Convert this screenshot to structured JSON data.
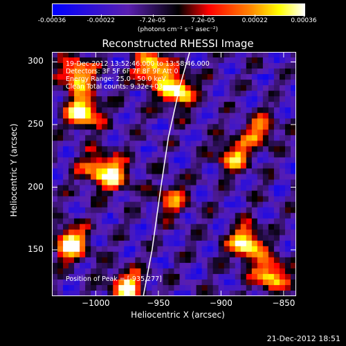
{
  "colorbar": {
    "tick_labels": [
      "-0.00036",
      "-0.00022",
      "-7.2e-05",
      "7.2e-05",
      "0.00022",
      "0.00036"
    ],
    "tick_values": [
      -0.00036,
      -0.00022,
      -7.2e-05,
      7.2e-05,
      0.00022,
      0.00036
    ],
    "unit": "(photons cm⁻² s⁻¹ asec⁻²)"
  },
  "chart_data": {
    "type": "heatmap",
    "title": "Reconstructed RHESSI Image",
    "xlabel": "Heliocentric X (arcsec)",
    "ylabel": "Heliocentric Y (arcsec)",
    "xlim": [
      -1035,
      -840
    ],
    "ylim": [
      113,
      308
    ],
    "xticks": [
      -1000,
      -950,
      -900,
      -850
    ],
    "yticks": [
      150,
      200,
      250,
      300
    ],
    "xtick_labels": [
      "−1000",
      "−950",
      "−900",
      "−850"
    ],
    "ytick_labels": [
      "150",
      "200",
      "250",
      "300"
    ],
    "zlim": [
      -0.00036,
      0.00036
    ],
    "colormap": [
      "#0000ff",
      "#5a1fb0",
      "#000000",
      "#ff0000",
      "#ff8000",
      "#ffff00",
      "#ffffff"
    ],
    "bright_sources": [
      {
        "x": -1010,
        "y": 260,
        "intensity": 1.0
      },
      {
        "x": -1015,
        "y": 290,
        "intensity": 0.9
      },
      {
        "x": -1020,
        "y": 155,
        "intensity": 1.0
      },
      {
        "x": -975,
        "y": 120,
        "intensity": 0.9
      },
      {
        "x": -955,
        "y": 295,
        "intensity": 0.95
      },
      {
        "x": -935,
        "y": 277,
        "intensity": 1.0
      },
      {
        "x": -985,
        "y": 210,
        "intensity": 0.7
      },
      {
        "x": -1000,
        "y": 215,
        "intensity": 0.6
      },
      {
        "x": -880,
        "y": 155,
        "intensity": 1.0
      },
      {
        "x": -860,
        "y": 130,
        "intensity": 0.85
      },
      {
        "x": -890,
        "y": 225,
        "intensity": 0.7
      },
      {
        "x": -870,
        "y": 245,
        "intensity": 0.6
      },
      {
        "x": -940,
        "y": 190,
        "intensity": 0.55
      }
    ],
    "limb_curve": [
      [
        -962,
        113
      ],
      [
        -955,
        150
      ],
      [
        -948,
        200
      ],
      [
        -942,
        240
      ],
      [
        -933,
        280
      ],
      [
        -925,
        308
      ]
    ],
    "info_lines": [
      "19-Dec-2012 13:52:46.000 to 13:58:46.000",
      "Detectors: 3F 5F 6F 7F 8F 9F Att 0",
      "Energy Range: 25.0 - 50.0 keV",
      "Clean    Total counts: 9.32e+03"
    ],
    "peak_label": "Position of Peak = [-935,277]"
  },
  "timestamp": "21-Dec-2012 18:51"
}
